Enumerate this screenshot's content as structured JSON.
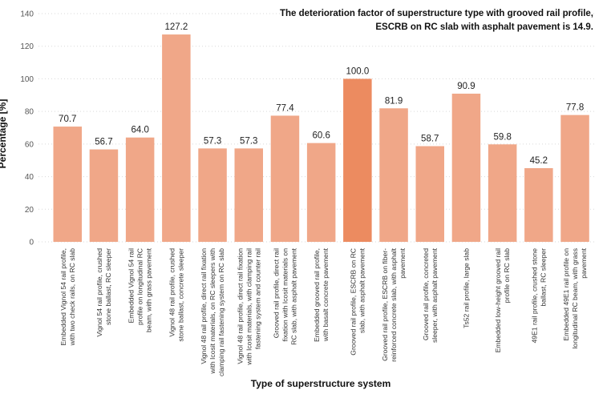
{
  "chart_data": {
    "type": "bar",
    "annotation": [
      "The deterioration factor of superstructure type with grooved rail profile,",
      "ESCRB on RC slab with asphalt pavement is 14.9."
    ],
    "xlabel": "Type of superstructure system",
    "ylabel": "Percentage [%]",
    "ylim": [
      0,
      140
    ],
    "yticks": [
      0,
      20,
      40,
      60,
      80,
      100,
      120,
      140
    ],
    "grid": true,
    "legend": "none",
    "colors": {
      "bar": "#f0a788",
      "highlight": "#ec8b60",
      "grid": "#d9d9d9"
    },
    "highlight_index": 8,
    "categories": [
      [
        "Embedded Vignol 54 rail profile,",
        "with two check rails, on RC slab"
      ],
      [
        "Vignol 54 rail profile, crushed",
        "stone ballast, RC sleeper"
      ],
      [
        "Embedded Vignol 54 rail",
        "profile on longitudinal RC",
        "beam, with grass pavement"
      ],
      [
        "Vignol 48 rail profile, crushed",
        "stone ballast, concrete sleeper"
      ],
      [
        "Vignol 48 rail profile, direct rail fixation",
        "with Icosit materials, on RC sleepers with",
        "clamping rail fastening system on RC slab"
      ],
      [
        "Vignol 48 rail profile, direct rail fixation",
        "with Icosit materials, with clamping rail",
        "fastening system and counter rail"
      ],
      [
        "Grooved rail profile, direct rail",
        "fixation with Icosit materials on",
        "RC slab, with asphalt pavement"
      ],
      [
        "Embedded grooved rail profile,",
        "with basalt concrete pavement"
      ],
      [
        "Grooved rail profile, ESCRB on RC",
        "slab, with asphalt pavement"
      ],
      [
        "Grooved rail profile, ESCRB on fiber-",
        "reinforced concrete slab, with asphalt",
        "pavement"
      ],
      [
        "Grooved rail profile, concreted",
        "sleeper, with asphalt pavement"
      ],
      [
        "Ts52 rail profile, large slab"
      ],
      [
        "Embedded low-height grooved rail",
        "profile on RC slab"
      ],
      [
        "49E1 rail profile, crushed stone",
        "ballast, RC sleeper"
      ],
      [
        "Embedded 49E1 rail profile on",
        "longitudinal RC beam, with grass",
        "pavement"
      ]
    ],
    "values": [
      70.7,
      56.7,
      64.0,
      127.2,
      57.3,
      57.3,
      77.4,
      60.6,
      100.0,
      81.9,
      58.7,
      90.9,
      59.8,
      45.2,
      77.8
    ],
    "value_labels": [
      "70.7",
      "56.7",
      "64.0",
      "127.2",
      "57.3",
      "57.3",
      "77.4",
      "60.6",
      "100.0",
      "81.9",
      "58.7",
      "90.9",
      "59.8",
      "45.2",
      "77.8"
    ]
  }
}
